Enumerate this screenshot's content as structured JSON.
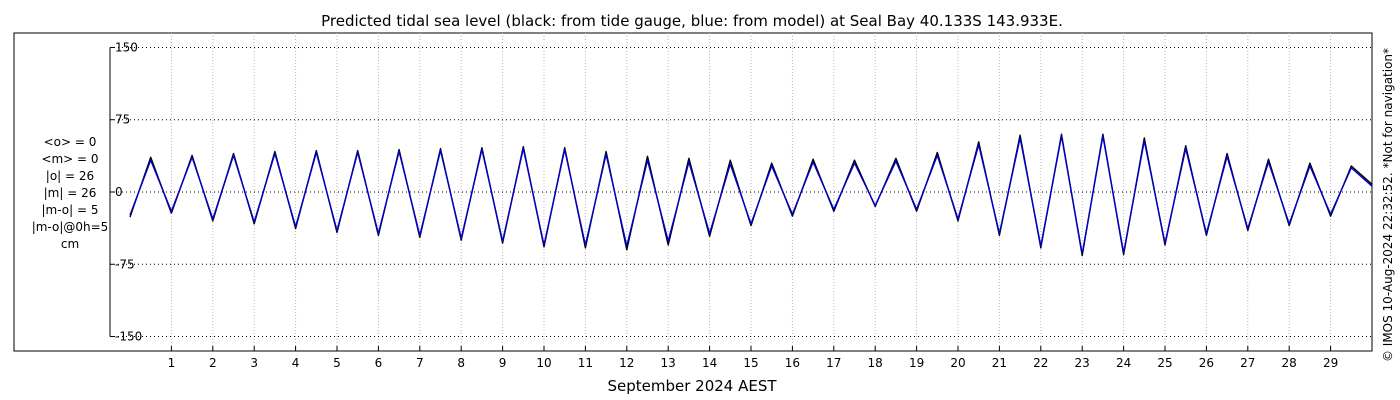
{
  "chart_data": {
    "type": "line",
    "title": "Predicted tidal sea level (black: from tide gauge, blue: from model) at Seal Bay 40.133S 143.933E.",
    "xlabel": "September 2024 AEST",
    "ylabel": "",
    "ylim": [
      -165,
      165
    ],
    "xlim": [
      0.0,
      30.0
    ],
    "y_ticks": [
      150,
      75,
      0,
      -75,
      -150
    ],
    "y_tick_labels": [
      "150",
      "75",
      "0",
      "-75",
      "-150"
    ],
    "x_ticks": [
      1,
      2,
      3,
      4,
      5,
      6,
      7,
      8,
      9,
      10,
      11,
      12,
      13,
      14,
      15,
      16,
      17,
      18,
      19,
      20,
      21,
      22,
      23,
      24,
      25,
      26,
      27,
      28,
      29
    ],
    "x_tick_labels": [
      "1",
      "2",
      "3",
      "4",
      "5",
      "6",
      "7",
      "8",
      "9",
      "10",
      "11",
      "12",
      "13",
      "14",
      "15",
      "16",
      "17",
      "18",
      "19",
      "20",
      "21",
      "22",
      "23",
      "24",
      "25",
      "26",
      "27",
      "28",
      "29"
    ],
    "grid": true,
    "series": [
      {
        "name": "tide gauge",
        "color": "#000000",
        "x": [
          0.0,
          0.5,
          1.0,
          1.5,
          2.0,
          2.5,
          3.0,
          3.5,
          4.0,
          4.5,
          5.0,
          5.5,
          6.0,
          6.5,
          7.0,
          7.5,
          8.0,
          8.5,
          9.0,
          9.5,
          10.0,
          10.5,
          11.0,
          11.5,
          12.0,
          12.5,
          13.0,
          13.5,
          14.0,
          14.5,
          15.0,
          15.5,
          16.0,
          16.5,
          17.0,
          17.5,
          18.0,
          18.5,
          19.0,
          19.5,
          20.0,
          20.5,
          21.0,
          21.5,
          22.0,
          22.5,
          23.0,
          23.5,
          24.0,
          24.5,
          25.0,
          25.5,
          26.0,
          26.5,
          27.0,
          27.5,
          28.0,
          28.5,
          29.0,
          29.5,
          30.0
        ],
        "y": [
          -26,
          36,
          -22,
          38,
          -30,
          40,
          -33,
          42,
          -38,
          43,
          -42,
          43,
          -45,
          44,
          -47,
          45,
          -50,
          46,
          -53,
          47,
          -57,
          46,
          -58,
          42,
          -60,
          37,
          -55,
          35,
          -46,
          33,
          -35,
          30,
          -25,
          34,
          -20,
          33,
          -15,
          35,
          -20,
          41,
          -30,
          52,
          -45,
          59,
          -58,
          60,
          -66,
          60,
          -65,
          56,
          -55,
          48,
          -45,
          40,
          -40,
          34,
          -35,
          30,
          -25,
          27,
          8
        ]
      },
      {
        "name": "model",
        "color": "#0000cc",
        "x": [
          0.0,
          0.5,
          1.0,
          1.5,
          2.0,
          2.5,
          3.0,
          3.5,
          4.0,
          4.5,
          5.0,
          5.5,
          6.0,
          6.5,
          7.0,
          7.5,
          8.0,
          8.5,
          9.0,
          9.5,
          10.0,
          10.5,
          11.0,
          11.5,
          12.0,
          12.5,
          13.0,
          13.5,
          14.0,
          14.5,
          15.0,
          15.5,
          16.0,
          16.5,
          17.0,
          17.5,
          18.0,
          18.5,
          19.0,
          19.5,
          20.0,
          20.5,
          21.0,
          21.5,
          22.0,
          22.5,
          23.0,
          23.5,
          24.0,
          24.5,
          25.0,
          25.5,
          26.0,
          26.5,
          27.0,
          27.5,
          28.0,
          28.5,
          29.0,
          29.5,
          30.0
        ],
        "y": [
          -24,
          33,
          -20,
          36,
          -28,
          38,
          -31,
          40,
          -36,
          41,
          -40,
          41,
          -43,
          42,
          -45,
          43,
          -48,
          44,
          -51,
          45,
          -55,
          44,
          -55,
          39,
          -56,
          33,
          -51,
          31,
          -43,
          29,
          -33,
          27,
          -23,
          31,
          -18,
          30,
          -14,
          32,
          -18,
          38,
          -28,
          49,
          -43,
          56,
          -56,
          58,
          -64,
          58,
          -63,
          53,
          -53,
          45,
          -43,
          37,
          -38,
          31,
          -33,
          27,
          -23,
          25,
          6
        ]
      }
    ]
  },
  "stats": {
    "lines": [
      "<o> = 0",
      "<m> = 0",
      "|o| = 26",
      "|m| = 26",
      "|m-o| = 5",
      "|m-o|@0h=5",
      "cm"
    ]
  },
  "credit": "© IMOS 10-Aug-2024 22:32:52. *Not for navigation*"
}
